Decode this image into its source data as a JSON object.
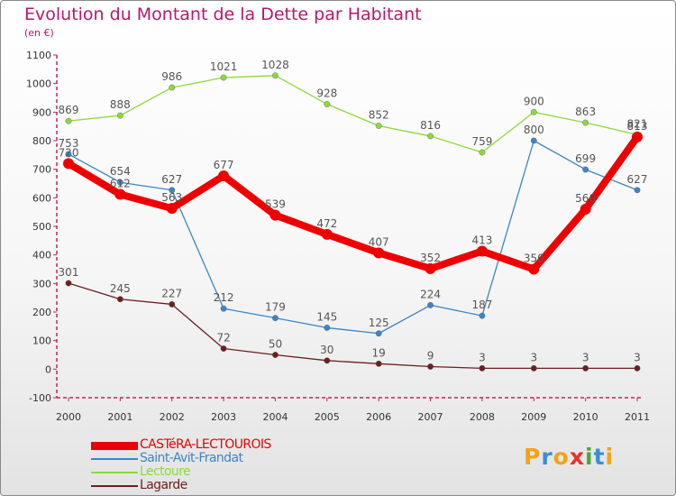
{
  "chart_data": {
    "type": "line",
    "title": "Evolution du Montant de la Dette par Habitant",
    "subtitle": "(en €)",
    "xlabel": "",
    "ylabel": "",
    "x": [
      "2000",
      "2001",
      "2002",
      "2003",
      "2004",
      "2005",
      "2006",
      "2007",
      "2008",
      "2009",
      "2010",
      "2011"
    ],
    "ylim": [
      -100,
      1100
    ],
    "yticks": [
      -100,
      0,
      100,
      200,
      300,
      400,
      500,
      600,
      700,
      800,
      900,
      1000,
      1100
    ],
    "grid": false,
    "legend_position": "bottom-left",
    "series": [
      {
        "name": "CASTéRA-LECTOUROIS",
        "color": "#ee0000",
        "width": 8,
        "label_color": "#555555",
        "values": [
          720,
          612,
          563,
          677,
          539,
          472,
          407,
          352,
          413,
          350,
          560,
          813
        ]
      },
      {
        "name": "Saint-Avit-Frandat",
        "color": "#3d85c6",
        "width": 1.3,
        "label_color": "#555555",
        "values": [
          753,
          654,
          627,
          212,
          179,
          145,
          125,
          224,
          187,
          800,
          699,
          627
        ]
      },
      {
        "name": "Lectoure",
        "color": "#8ed83c",
        "width": 1.3,
        "label_color": "#555555",
        "values": [
          869,
          888,
          986,
          1021,
          1028,
          928,
          852,
          816,
          759,
          900,
          863,
          821
        ]
      },
      {
        "name": "Lagarde",
        "color": "#6b1f1f",
        "width": 1.3,
        "label_color": "#555555",
        "values": [
          301,
          245,
          227,
          72,
          50,
          30,
          19,
          9,
          3,
          3,
          3,
          3
        ]
      }
    ]
  },
  "colors": {
    "title": "#b8176b",
    "axis": "#cc2255",
    "tick_text": "#333333"
  },
  "logo": {
    "text": "Proxiti",
    "letters": [
      {
        "ch": "P",
        "color": "#f5a21b"
      },
      {
        "ch": "r",
        "color": "#3a8fd6"
      },
      {
        "ch": "o",
        "color": "#f5a21b"
      },
      {
        "ch": "x",
        "color": "#e8322a"
      },
      {
        "ch": "i",
        "color": "#4aa83a"
      },
      {
        "ch": "t",
        "color": "#3a8fd6"
      },
      {
        "ch": "i",
        "color": "#f5a21b"
      }
    ]
  }
}
